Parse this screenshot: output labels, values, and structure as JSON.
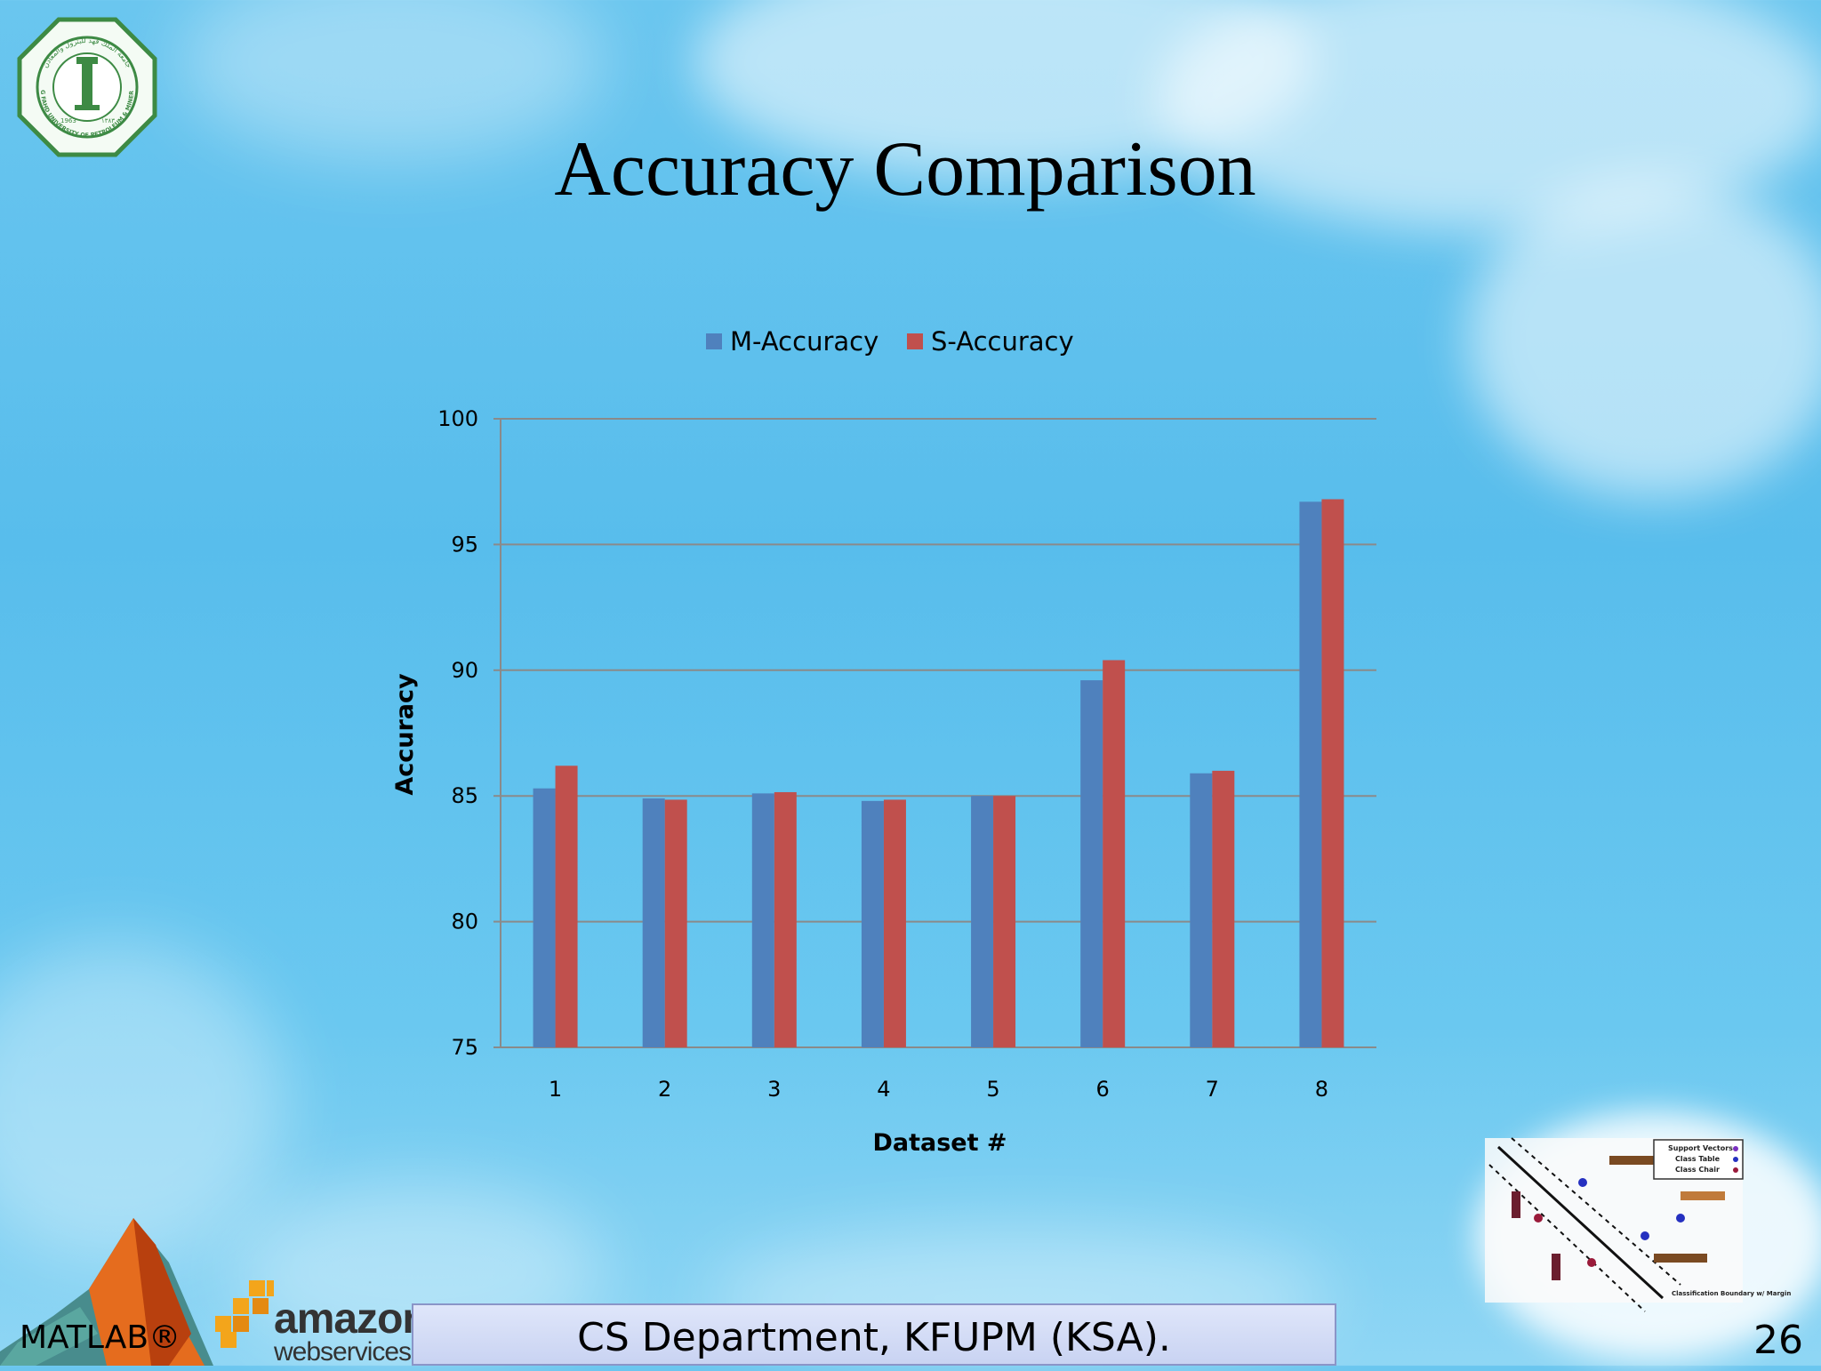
{
  "slide": {
    "title": "Accuracy Comparison",
    "footer_text": "CS Department, KFUPM (KSA).",
    "matlab_label": "MATLAB®",
    "page_number": "26",
    "aws_word1": "amazon",
    "aws_word2": "webservices™",
    "seal_caption_top": "جامعة الملك فهد للبترول والمعادن",
    "seal_caption_bottom": "KING FAHD UNIVERSITY OF PETROLEUM & MINERALS",
    "seal_year_left": "1963",
    "seal_year_right": "١٣٨٣",
    "svm_legend": [
      "Support Vectors",
      "Class Table",
      "Class Chair"
    ],
    "svm_caption": "Classification Boundary w/ Margin"
  },
  "colors": {
    "m_accuracy": "#4f81bd",
    "s_accuracy": "#c0504d"
  },
  "chart_data": {
    "type": "bar",
    "title": "",
    "xlabel": "Dataset #",
    "ylabel": "Accuracy",
    "categories": [
      "1",
      "2",
      "3",
      "4",
      "5",
      "6",
      "7",
      "8"
    ],
    "series": [
      {
        "name": "M-Accuracy",
        "values": [
          85.3,
          84.9,
          85.1,
          84.8,
          85.0,
          89.6,
          85.9,
          96.7
        ]
      },
      {
        "name": "S-Accuracy",
        "values": [
          86.2,
          84.85,
          85.15,
          84.85,
          85.0,
          90.4,
          86.0,
          96.8
        ]
      }
    ],
    "ylim": [
      75,
      100
    ],
    "yticks": [
      "75",
      "80",
      "85",
      "90",
      "95",
      "100"
    ],
    "grid": true,
    "legend": "top-center"
  }
}
